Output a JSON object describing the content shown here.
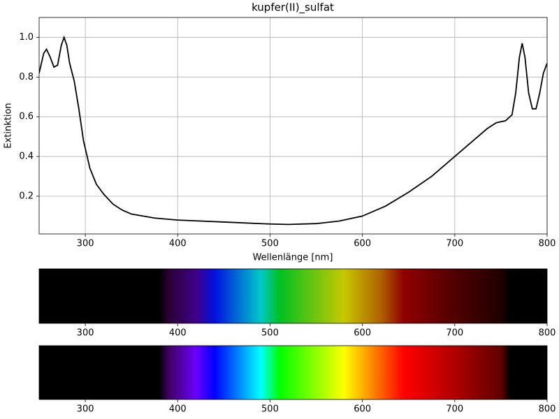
{
  "chart_data": [
    {
      "type": "line",
      "title": "kupfer(II)_sulfat",
      "xlabel": "Wellenlänge [nm]",
      "ylabel": "Extinktion",
      "x": [
        250,
        255,
        258,
        262,
        266,
        270,
        274,
        277,
        280,
        283,
        288,
        293,
        298,
        305,
        312,
        320,
        330,
        340,
        350,
        375,
        400,
        450,
        500,
        520,
        550,
        575,
        600,
        625,
        650,
        675,
        700,
        725,
        735,
        745,
        755,
        762,
        766,
        770,
        773,
        776,
        780,
        784,
        788,
        792,
        796,
        800
      ],
      "values": [
        0.82,
        0.92,
        0.94,
        0.9,
        0.85,
        0.86,
        0.96,
        1.0,
        0.96,
        0.87,
        0.78,
        0.64,
        0.48,
        0.34,
        0.26,
        0.21,
        0.16,
        0.13,
        0.11,
        0.09,
        0.08,
        0.07,
        0.06,
        0.058,
        0.062,
        0.075,
        0.1,
        0.15,
        0.22,
        0.3,
        0.4,
        0.5,
        0.54,
        0.57,
        0.58,
        0.61,
        0.72,
        0.9,
        0.97,
        0.9,
        0.72,
        0.64,
        0.64,
        0.72,
        0.82,
        0.87
      ],
      "color": "#000000",
      "xlim": [
        250,
        800
      ],
      "xticks": [
        300,
        400,
        500,
        600,
        700,
        800
      ],
      "ylim": [
        0.01,
        1.1
      ],
      "yticks": [
        0.2,
        0.4,
        0.6,
        0.8,
        {
          "value": 1,
          "label": "1.0"
        }
      ],
      "grid": true
    },
    {
      "type": "spectrum",
      "xlim": [
        250,
        800
      ],
      "xticks": [
        300,
        400,
        500,
        600,
        700,
        800
      ]
    },
    {
      "type": "spectrum",
      "xlim": [
        250,
        800
      ],
      "xticks": [
        300,
        400,
        500,
        600,
        700,
        800
      ]
    }
  ]
}
